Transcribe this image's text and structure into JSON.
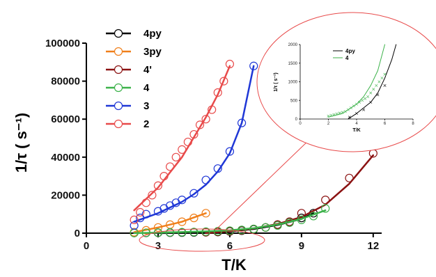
{
  "chart_data": [
    {
      "type": "scatter",
      "xlabel": "T/K",
      "ylabel": "1/τ ( s⁻¹)",
      "xlim": [
        0,
        12.5
      ],
      "ylim": [
        0,
        100000
      ],
      "xticks": [
        "0",
        "3",
        "6",
        "9",
        "12"
      ],
      "yticks": [
        "0",
        "20000",
        "40000",
        "60000",
        "80000",
        "100000"
      ],
      "legend": {
        "position": "top-left",
        "items": [
          "4py",
          "3py",
          "4'",
          "4",
          "3",
          "2"
        ]
      },
      "series": [
        {
          "name": "4py",
          "color": "#000000",
          "x": [
            2,
            2.5,
            3,
            3.5,
            4,
            4.5,
            5,
            5.5,
            6,
            6.5,
            7,
            7.5,
            8,
            8.5,
            9,
            9.5
          ],
          "y": [
            100,
            150,
            200,
            250,
            300,
            400,
            500,
            600,
            900,
            1300,
            2000,
            3000,
            4500,
            6000,
            8000,
            10500
          ],
          "fit_x": [
            3,
            4,
            5,
            6,
            7,
            8,
            9,
            9.5
          ],
          "fit_y": [
            0,
            200,
            500,
            900,
            2200,
            4300,
            7500,
            10500
          ]
        },
        {
          "name": "3py",
          "color": "#f07f1a",
          "x": [
            2,
            2.5,
            3,
            3.5,
            4,
            4.5,
            5
          ],
          "y": [
            500,
            1500,
            3000,
            4500,
            6000,
            8000,
            10500
          ],
          "fit_x": [
            2,
            3,
            4,
            5
          ],
          "fit_y": [
            500,
            3000,
            6000,
            10500
          ]
        },
        {
          "name": "4'",
          "color": "#8b1212",
          "x": [
            5,
            5.5,
            6,
            6.5,
            7,
            7.5,
            8,
            8.5,
            9,
            10,
            11,
            12
          ],
          "y": [
            500,
            700,
            1000,
            1500,
            2200,
            3000,
            4500,
            6000,
            10500,
            17500,
            29000,
            42000
          ],
          "fit_x": [
            5,
            6,
            7,
            8,
            9,
            10,
            11,
            12
          ],
          "fit_y": [
            0,
            1000,
            2500,
            4800,
            8500,
            15000,
            26000,
            41000
          ]
        },
        {
          "name": "4",
          "color": "#3cb24a",
          "x": [
            2,
            2.5,
            3,
            3.5,
            4,
            4.5,
            5,
            5.5,
            6,
            6.5,
            7,
            7.5,
            8,
            8.5,
            9,
            9.5,
            10
          ],
          "y": [
            100,
            200,
            300,
            400,
            500,
            600,
            800,
            1000,
            1300,
            1700,
            2200,
            3000,
            4000,
            5500,
            7000,
            9000,
            13000
          ],
          "fit_x": [
            2,
            3,
            4,
            5,
            6,
            7,
            8,
            9,
            10
          ],
          "fit_y": [
            0,
            300,
            600,
            900,
            1500,
            2600,
            4500,
            7500,
            12000
          ]
        },
        {
          "name": "3",
          "color": "#1f37d6",
          "x": [
            2,
            2.25,
            2.5,
            3,
            3.25,
            3.5,
            3.75,
            4,
            4.5,
            5,
            5.5,
            6,
            6.5,
            7
          ],
          "y": [
            4000,
            8000,
            10000,
            11500,
            13000,
            14500,
            16000,
            17500,
            21000,
            28000,
            34000,
            43000,
            58000,
            88000
          ],
          "fit_x": [
            2,
            3,
            4,
            4.5,
            5,
            5.5,
            6,
            6.5,
            7
          ],
          "fit_y": [
            6000,
            10500,
            16500,
            20500,
            25500,
            32500,
            42000,
            58000,
            88000
          ]
        },
        {
          "name": "2",
          "color": "#e84a4a",
          "x": [
            2,
            2.25,
            2.5,
            2.75,
            3,
            3.25,
            3.5,
            3.75,
            4,
            4.25,
            4.5,
            4.75,
            5,
            5.25,
            5.5,
            5.75,
            6
          ],
          "y": [
            7000,
            11000,
            16000,
            20000,
            25000,
            30000,
            35000,
            40000,
            44000,
            48000,
            52000,
            57000,
            60000,
            65000,
            74000,
            80000,
            89000
          ],
          "fit_x": [
            2,
            3,
            4,
            5,
            5.5,
            6
          ],
          "fit_y": [
            12000,
            24000,
            40000,
            61000,
            73000,
            88000
          ]
        }
      ]
    },
    {
      "type": "scatter",
      "xlabel": "T/K",
      "ylabel": "1/τ ( s⁻¹)",
      "xlim": [
        0,
        8
      ],
      "ylim": [
        0,
        2000
      ],
      "xticks": [
        "0",
        "2",
        "4",
        "6",
        "8"
      ],
      "yticks": [
        "0",
        "500",
        "1000",
        "1500",
        "2000"
      ],
      "legend": {
        "position": "top-left",
        "items": [
          "4py",
          "4"
        ]
      },
      "series": [
        {
          "name": "4py",
          "color": "#000000",
          "x": [
            3.5,
            4,
            4.5,
            5,
            5.5,
            6
          ],
          "y": [
            50,
            150,
            250,
            450,
            650,
            900
          ],
          "fit_x": [
            3.4,
            4,
            5,
            5.5,
            6,
            6.5,
            6.8
          ],
          "fit_y": [
            0,
            150,
            450,
            700,
            1100,
            1600,
            2000
          ]
        },
        {
          "name": "4",
          "color": "#3cb24a",
          "x": [
            2,
            2.2,
            2.4,
            2.6,
            2.8,
            3,
            3.2,
            3.4,
            3.6,
            3.8,
            4,
            4.2,
            4.4,
            4.6,
            4.8,
            5,
            5.2,
            5.4,
            5.6,
            5.8,
            6
          ],
          "y": [
            80,
            100,
            120,
            140,
            160,
            180,
            200,
            250,
            300,
            350,
            400,
            450,
            500,
            550,
            600,
            700,
            800,
            900,
            1000,
            1100,
            1200
          ],
          "fit_x": [
            2,
            3,
            4,
            4.5,
            5,
            5.5,
            6
          ],
          "fit_y": [
            50,
            150,
            400,
            600,
            900,
            1300,
            2000
          ]
        }
      ]
    }
  ]
}
